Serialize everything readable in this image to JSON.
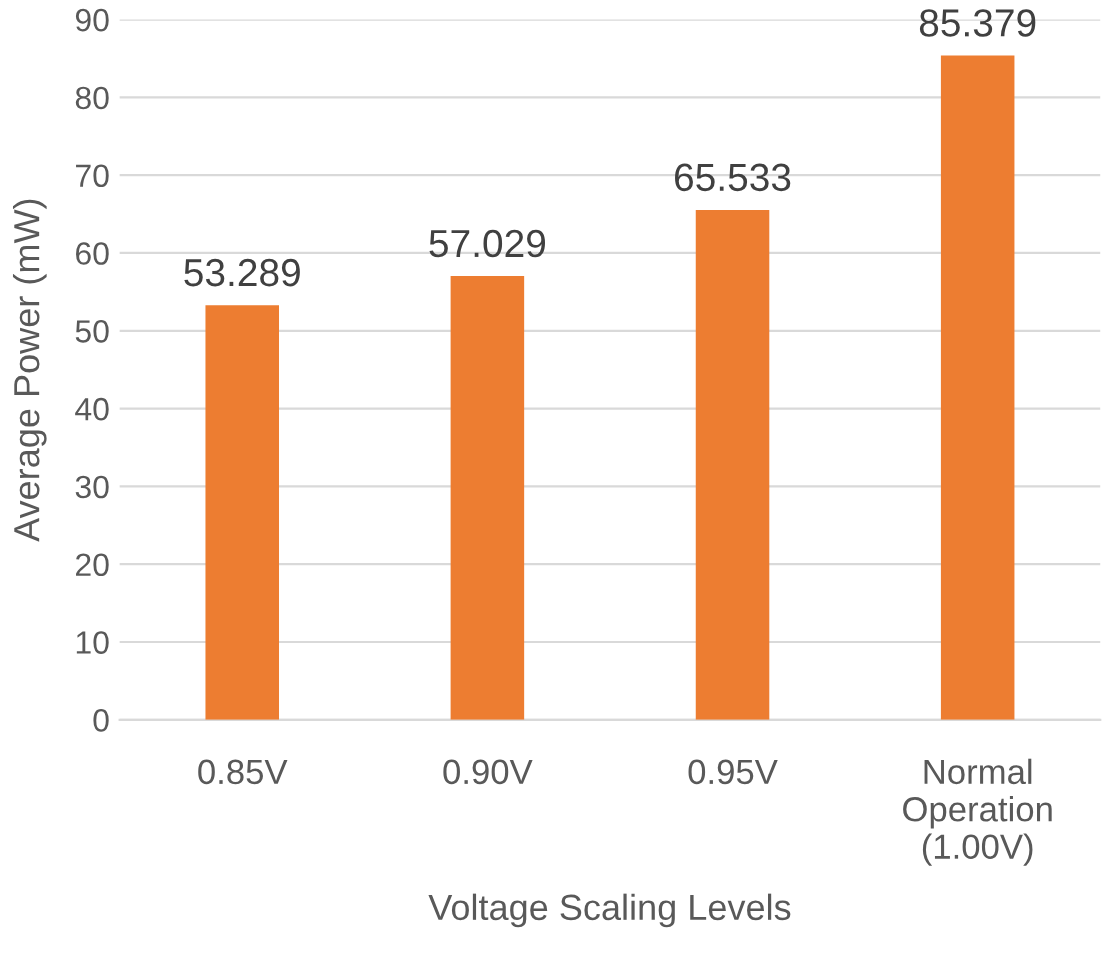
{
  "chart_data": {
    "type": "bar",
    "categories": [
      "0.85V",
      "0.90V",
      "0.95V",
      "Normal Operation (1.00V)"
    ],
    "values": [
      53.289,
      57.029,
      65.533,
      85.379
    ],
    "color": "#ed7d31",
    "xlabel": "Voltage Scaling Levels",
    "ylabel": "Average Power (mW)",
    "ylim": [
      0,
      90
    ],
    "yticks": [
      0,
      10,
      20,
      30,
      40,
      50,
      60,
      70,
      80,
      90
    ],
    "grid": "y",
    "data_labels": true
  }
}
